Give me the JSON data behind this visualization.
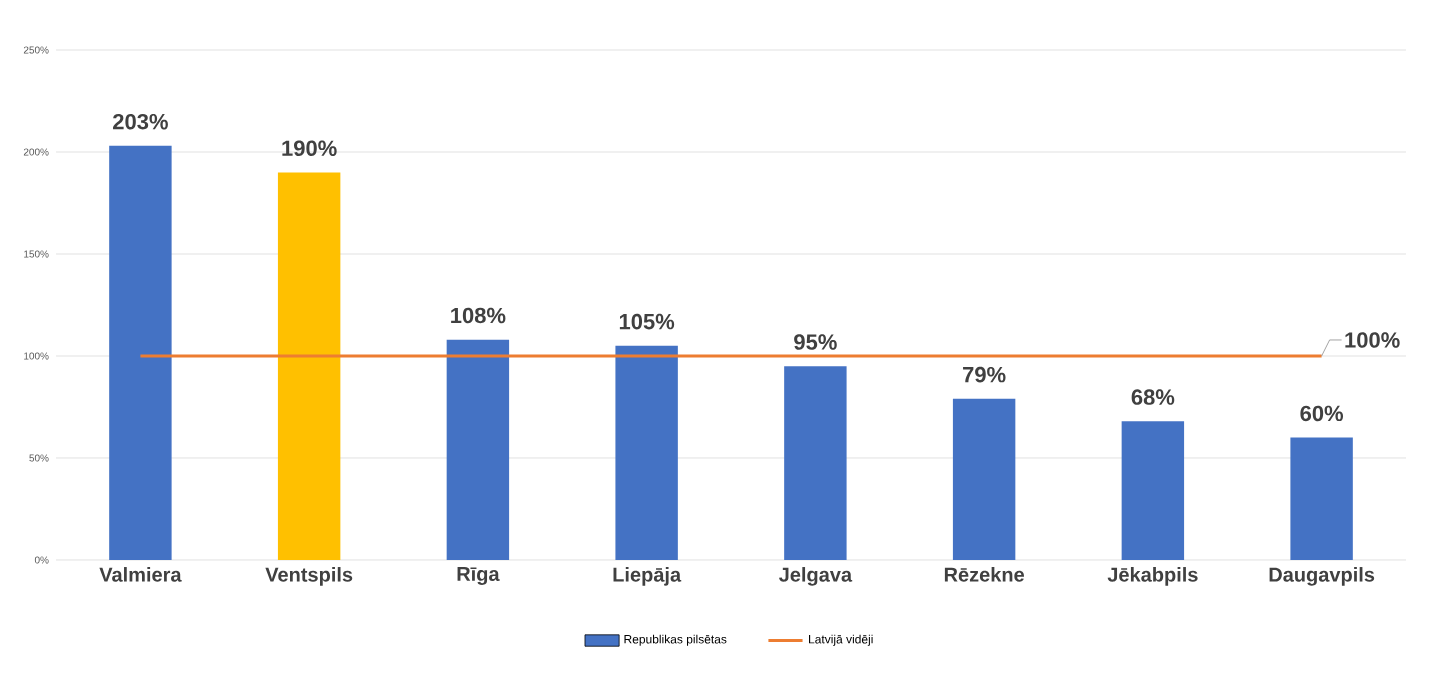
{
  "chart_data": {
    "type": "bar",
    "categories": [
      "Valmiera",
      "Ventspils",
      "Rīga",
      "Liepāja",
      "Jelgava",
      "Rēzekne",
      "Jēkabpils",
      "Daugavpils"
    ],
    "series": [
      {
        "name": "Republikas pilsētas",
        "color": "#4472c4",
        "colors": [
          "#4472c4",
          "#ffc000",
          "#4472c4",
          "#4472c4",
          "#4472c4",
          "#4472c4",
          "#4472c4",
          "#4472c4"
        ],
        "values": [
          203,
          190,
          108,
          105,
          95,
          79,
          68,
          60
        ],
        "value_labels": [
          "203%",
          "190%",
          "108%",
          "105%",
          "95%",
          "79%",
          "68%",
          "60%"
        ]
      },
      {
        "name": "Latvijā vidēji",
        "type": "line",
        "color": "#ed7d31",
        "values": [
          100,
          100,
          100,
          100,
          100,
          100,
          100,
          100
        ],
        "value_labels": [
          null,
          null,
          null,
          null,
          null,
          null,
          null,
          "100%"
        ]
      }
    ],
    "ylim": [
      0,
      250
    ],
    "yticks": [
      {
        "value": 0,
        "label": "0%"
      },
      {
        "value": 50,
        "label": "50%"
      },
      {
        "value": 100,
        "label": "100%"
      },
      {
        "value": 150,
        "label": "150%"
      },
      {
        "value": 200,
        "label": "200%"
      },
      {
        "value": 250,
        "label": "250%"
      }
    ],
    "grid": "y",
    "legend": "bottom"
  }
}
